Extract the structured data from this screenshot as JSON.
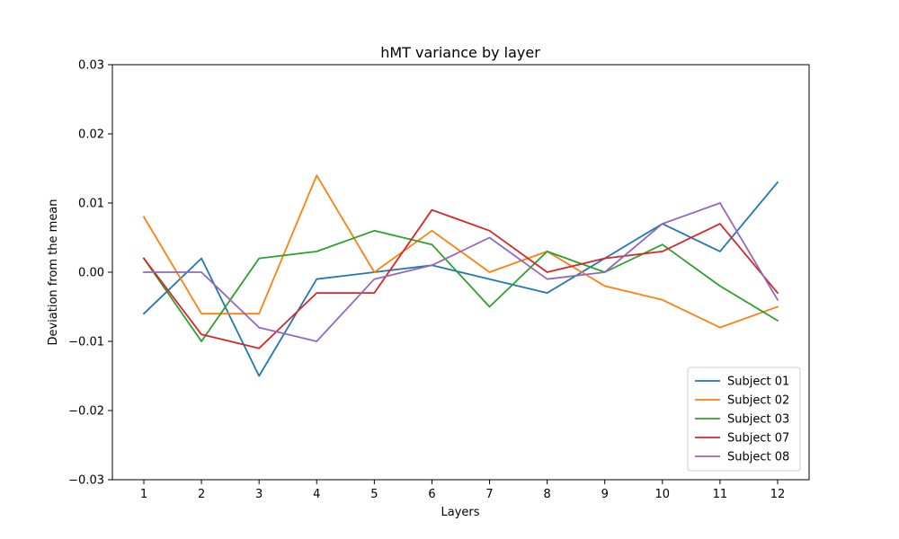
{
  "chart_data": {
    "type": "line",
    "title": "hMT variance by layer",
    "xlabel": "Layers",
    "ylabel": "Deviation from the mean",
    "x": [
      1,
      2,
      3,
      4,
      5,
      6,
      7,
      8,
      9,
      10,
      11,
      12
    ],
    "x_ticks": [
      "1",
      "2",
      "3",
      "4",
      "5",
      "6",
      "7",
      "8",
      "9",
      "10",
      "11",
      "12"
    ],
    "ylim": [
      -0.03,
      0.03
    ],
    "y_ticks": [
      -0.03,
      -0.02,
      -0.01,
      0.0,
      0.01,
      0.02,
      0.03
    ],
    "y_tick_labels": [
      "−0.03",
      "−0.02",
      "−0.01",
      "0.00",
      "0.01",
      "0.02",
      "0.03"
    ],
    "grid": false,
    "legend_position": "lower-right",
    "series": [
      {
        "name": "Subject 01",
        "color": "#1f77b4",
        "values": [
          -0.006,
          0.002,
          -0.015,
          -0.001,
          0.0,
          0.001,
          -0.001,
          -0.003,
          0.002,
          0.007,
          0.003,
          0.013
        ]
      },
      {
        "name": "Subject 02",
        "color": "#ff7f0e",
        "values": [
          0.008,
          -0.006,
          -0.006,
          0.014,
          0.0,
          0.006,
          0.0,
          0.003,
          -0.002,
          -0.004,
          -0.008,
          -0.005
        ]
      },
      {
        "name": "Subject 03",
        "color": "#2ca02c",
        "values": [
          0.002,
          -0.01,
          0.002,
          0.003,
          0.006,
          0.004,
          -0.005,
          0.003,
          0.0,
          0.004,
          -0.002,
          -0.007
        ]
      },
      {
        "name": "Subject 07",
        "color": "#d62728",
        "values": [
          0.002,
          -0.009,
          -0.011,
          -0.003,
          -0.003,
          0.009,
          0.006,
          0.0,
          0.002,
          0.003,
          0.007,
          -0.003
        ]
      },
      {
        "name": "Subject 08",
        "color": "#9467bd",
        "values": [
          0.0,
          0.0,
          -0.008,
          -0.01,
          -0.001,
          0.001,
          0.005,
          -0.001,
          0.0,
          0.007,
          0.01,
          -0.004
        ]
      }
    ]
  }
}
